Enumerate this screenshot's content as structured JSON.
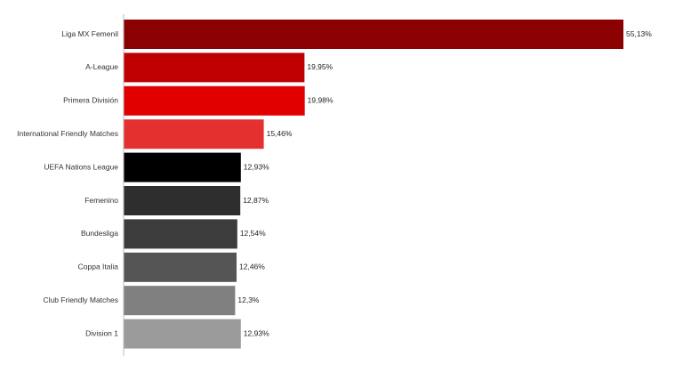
{
  "chart_data": {
    "type": "bar",
    "orientation": "horizontal",
    "title": "",
    "xlabel": "",
    "ylabel": "",
    "grid": false,
    "legend": "none",
    "xlim": [
      0,
      55.13
    ],
    "categories": [
      "Liga MX Femenil",
      "A-League",
      "Primera División",
      "International Friendly Matches",
      "UEFA Nations League",
      "Femenino",
      "Bundesliga",
      "Coppa Italia",
      "Club Friendly Matches",
      "Division 1"
    ],
    "values": [
      55.13,
      19.95,
      19.98,
      15.46,
      12.93,
      12.87,
      12.54,
      12.46,
      12.3,
      12.93
    ],
    "value_labels": [
      "55,13%",
      "19,95%",
      "19,98%",
      "15,46%",
      "12,93%",
      "12,87%",
      "12,54%",
      "12,46%",
      "12,3%",
      "12,93%"
    ],
    "colors": [
      "#8b0000",
      "#c00000",
      "#e00000",
      "#e53030",
      "#000000",
      "#2e2e2e",
      "#3c3c3c",
      "#555555",
      "#808080",
      "#9b9b9b"
    ]
  }
}
